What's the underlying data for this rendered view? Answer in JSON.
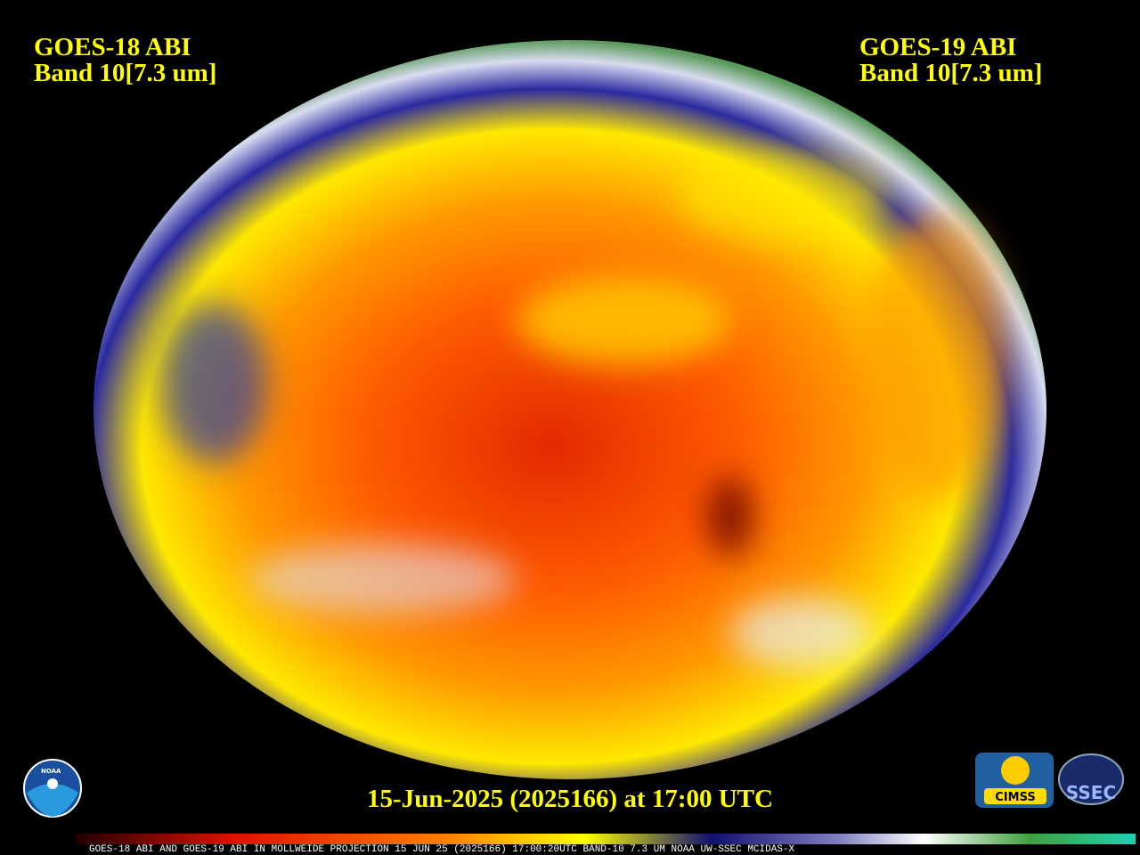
{
  "header": {
    "left": {
      "line1": "GOES-18 ABI",
      "line2": "Band 10[7.3 um]"
    },
    "right": {
      "line1": "GOES-19 ABI",
      "line2": "Band 10[7.3 um]"
    }
  },
  "timestamp": "15-Jun-2025 (2025166) at 17:00 UTC",
  "logos": {
    "noaa": "NOAA",
    "cimss": "CIMSS",
    "ssec": "SSEC"
  },
  "footer": "GOES-18 ABI AND GOES-19 ABI IN MOLLWEIDE PROJECTION 15 JUN 25 (2025166) 17:00:20UTC BAND-10 7.3 UM NOAA UW-SSEC MCIDAS-X"
}
